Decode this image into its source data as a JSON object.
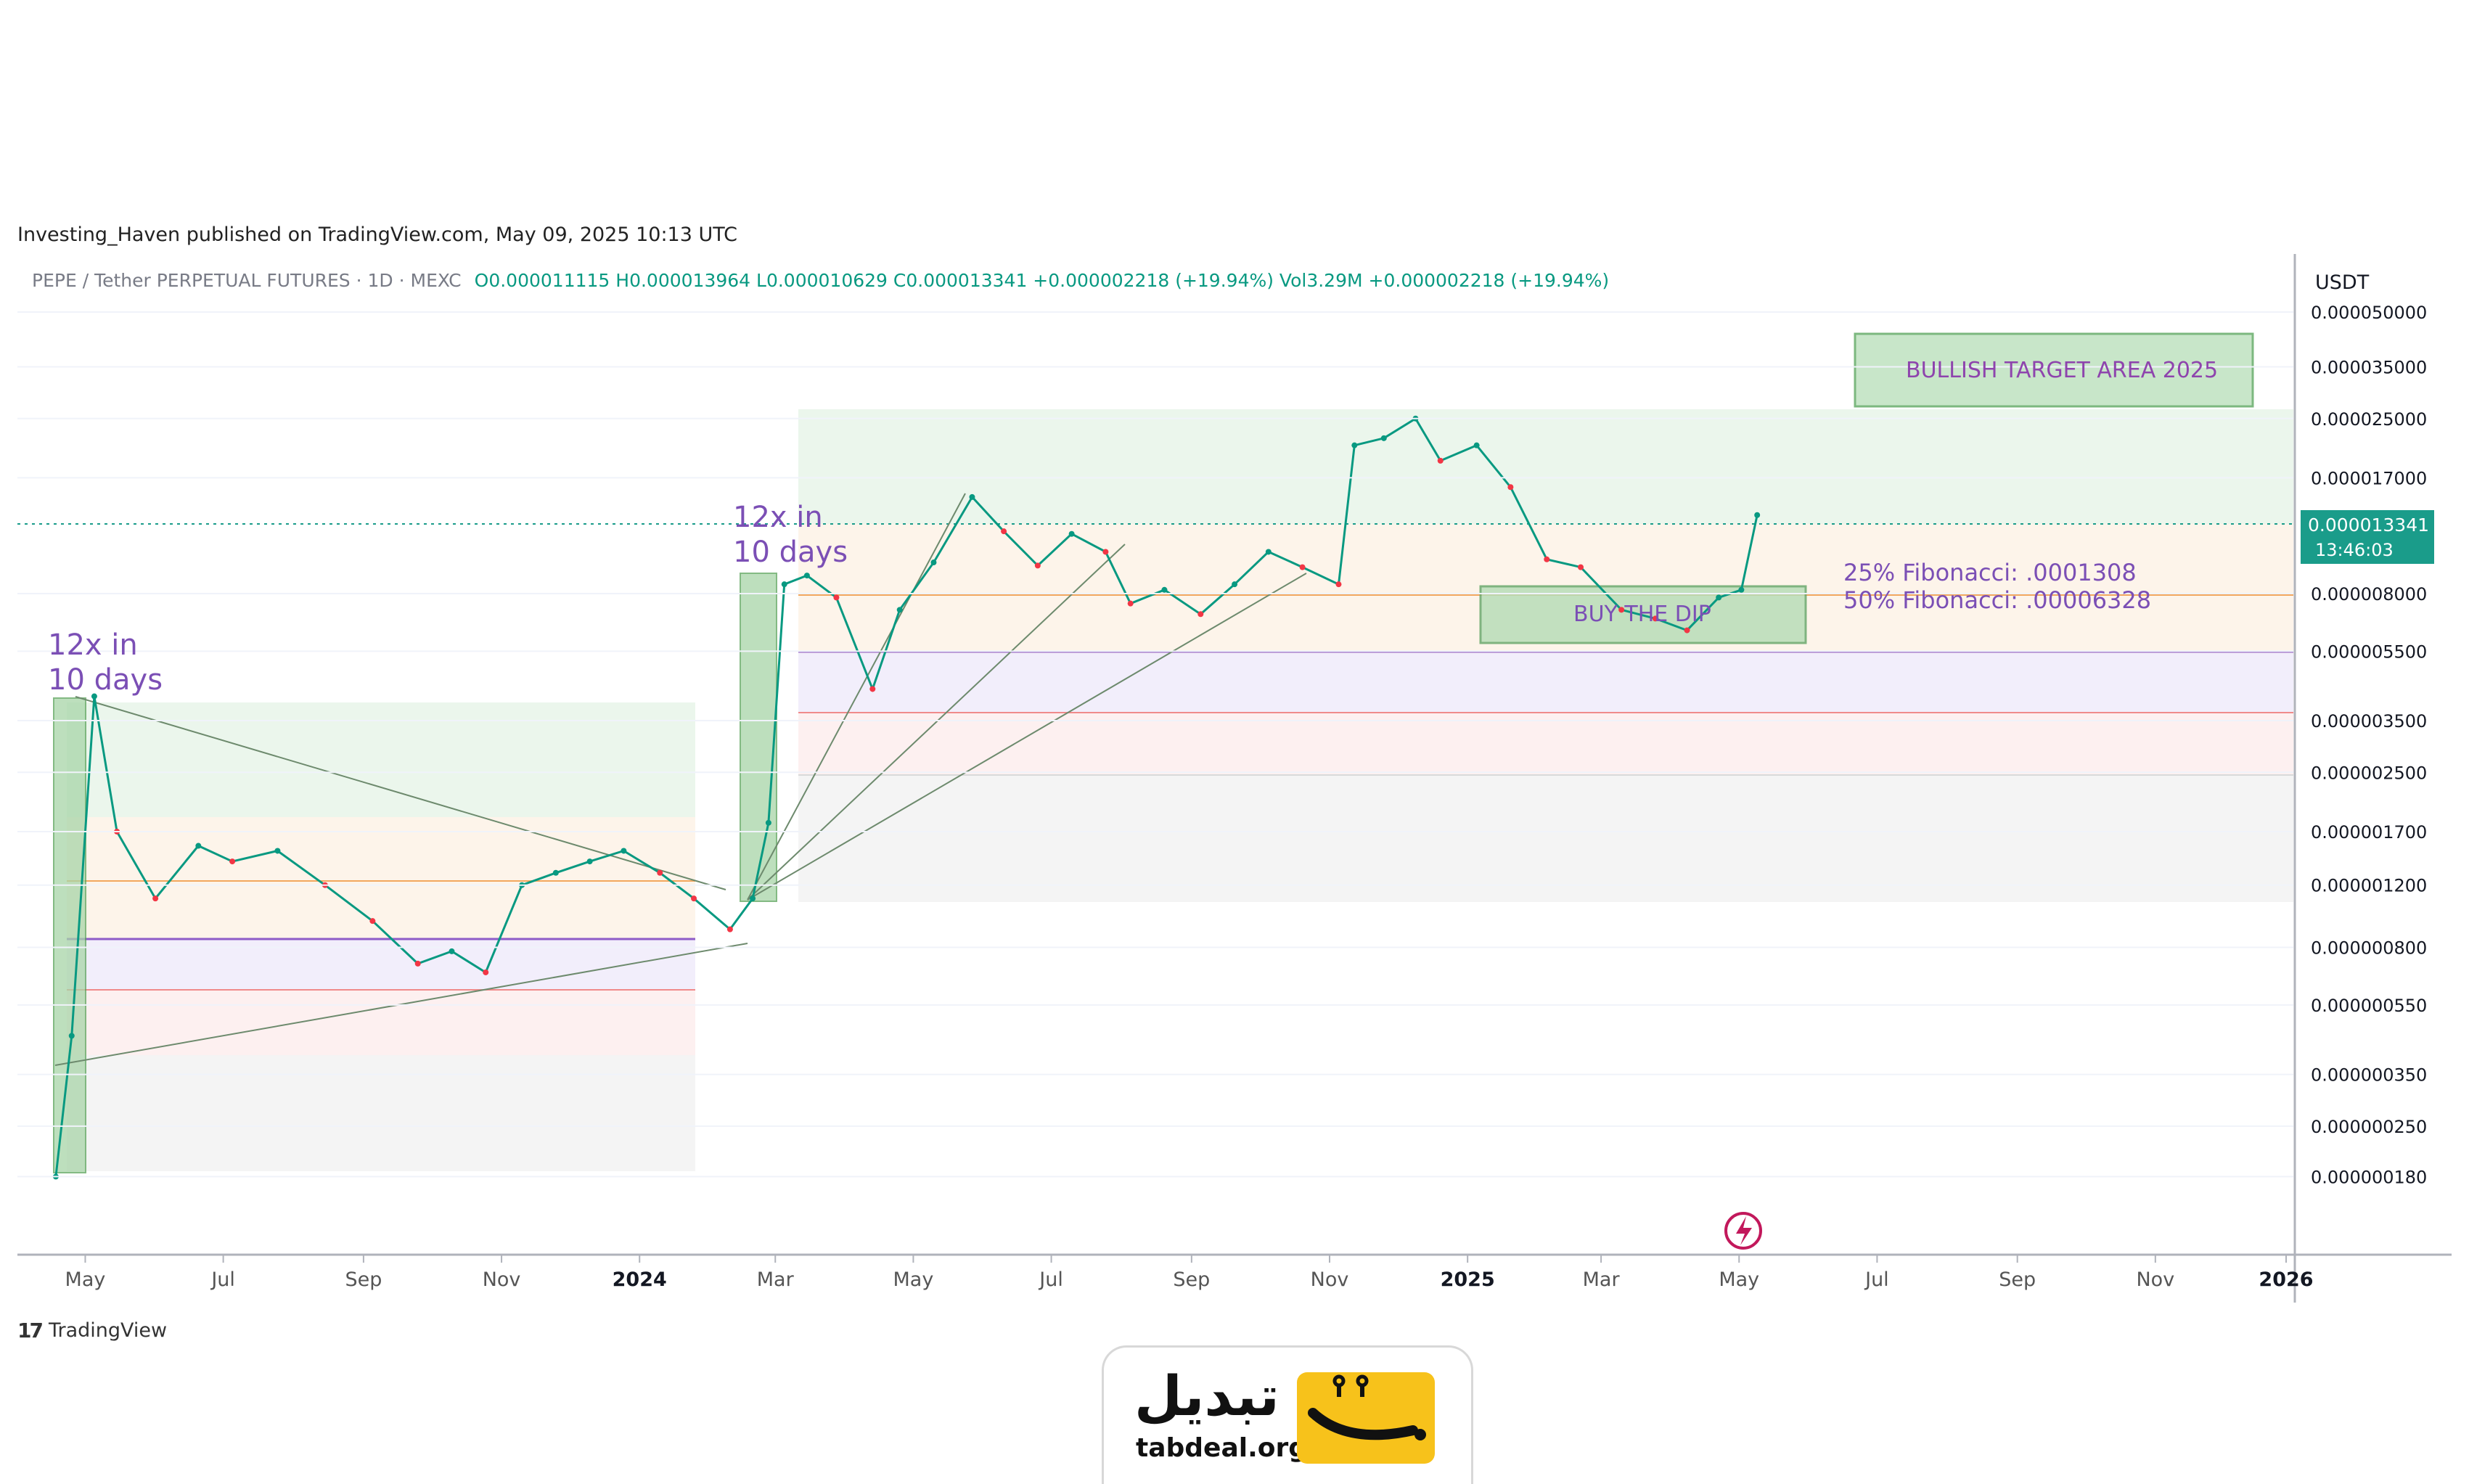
{
  "header": {
    "published": "Investing_Haven published on TradingView.com, May 09, 2025 10:13 UTC",
    "symbol": "PEPE / Tether PERPETUAL FUTURES · 1D · MEXC",
    "ohlc": "O0.000011115  H0.000013964  L0.000010629  C0.000013341  +0.000002218 (+19.94%)  Vol3.29M  +0.000002218 (+19.94%)"
  },
  "price_axis": {
    "unit": "USDT",
    "current_price": "0.000013341",
    "countdown": "13:46:03"
  },
  "annotations": {
    "jump1_line1": "12x in",
    "jump1_line2": "10 days",
    "jump2_line1": "12x in",
    "jump2_line2": "10 days",
    "target_box": "BULLISH TARGET AREA 2025",
    "buy_box": "BUY THE DIP",
    "fib25": "25% Fibonacci:  .0001308",
    "fib50": "50% Fibonacci:  .00006328"
  },
  "footer": {
    "brand": "TradingView"
  },
  "watermark": {
    "name_fa": "تبدیل",
    "domain": "tabdeal.org"
  },
  "colors": {
    "up": "#089981",
    "down": "#f23645",
    "annotation": "#7b4fb5",
    "price_badge": "#1a9c8a"
  },
  "chart_data": {
    "type": "line",
    "scale": "log",
    "x": [
      "2023-04-18",
      "2023-04-25",
      "2023-05-05",
      "2023-05-15",
      "2023-06-01",
      "2023-06-20",
      "2023-07-05",
      "2023-07-25",
      "2023-08-15",
      "2023-09-05",
      "2023-09-25",
      "2023-10-10",
      "2023-10-25",
      "2023-11-10",
      "2023-11-25",
      "2023-12-10",
      "2023-12-25",
      "2024-01-10",
      "2024-01-25",
      "2024-02-10",
      "2024-02-20",
      "2024-02-27",
      "2024-03-05",
      "2024-03-15",
      "2024-03-28",
      "2024-04-13",
      "2024-04-25",
      "2024-05-10",
      "2024-05-27",
      "2024-06-10",
      "2024-06-25",
      "2024-07-10",
      "2024-07-25",
      "2024-08-05",
      "2024-08-20",
      "2024-09-05",
      "2024-09-20",
      "2024-10-05",
      "2024-10-20",
      "2024-11-05",
      "2024-11-12",
      "2024-11-25",
      "2024-12-09",
      "2024-12-20",
      "2025-01-05",
      "2025-01-20",
      "2025-02-05",
      "2025-02-20",
      "2025-03-10",
      "2025-03-25",
      "2025-04-08",
      "2025-04-22",
      "2025-05-02",
      "2025-05-09"
    ],
    "series": [
      {
        "values": [
          1.8e-07,
          4.5e-07,
          4.1e-06,
          1.7e-06,
          1.1e-06,
          1.55e-06,
          1.4e-06,
          1.5e-06,
          1.2e-06,
          9.5e-07,
          7.2e-07,
          7.8e-07,
          6.8e-07,
          1.2e-06,
          1.3e-06,
          1.4e-06,
          1.5e-06,
          1.3e-06,
          1.1e-06,
          9e-07,
          1.1e-06,
          1.8e-06,
          8.5e-06,
          9e-06,
          7.8e-06,
          4.3e-06,
          7.2e-06,
          9.8e-06,
          1.5e-05,
          1.2e-05,
          9.6e-06,
          1.18e-05,
          1.05e-05,
          7.5e-06,
          8.2e-06,
          7e-06,
          8.5e-06,
          1.05e-05,
          9.5e-06,
          8.5e-06,
          2.1e-05,
          2.2e-05,
          2.5e-05,
          1.9e-05,
          2.1e-05,
          1.6e-05,
          1e-05,
          9.5e-06,
          7.2e-06,
          6.8e-06,
          6.3e-06,
          7.8e-06,
          8.2e-06,
          1.3341e-05
        ]
      }
    ],
    "x_ticks": [
      "May",
      "Jul",
      "Sep",
      "Nov",
      "2024",
      "Mar",
      "May",
      "Jul",
      "Sep",
      "Nov",
      "2025",
      "Mar",
      "May",
      "Jul",
      "Sep",
      "Nov",
      "2026"
    ],
    "y_ticks": [
      "0.000050000",
      "0.000035000",
      "0.000025000",
      "0.000017000",
      "0.000008000",
      "0.000005500",
      "0.000003500",
      "0.000002500",
      "0.000001700",
      "0.000001200",
      "0.000000800",
      "0.000000550",
      "0.000000350",
      "0.000000250",
      "0.000000180"
    ],
    "ylim": [
      1.5e-07,
      5e-05
    ]
  }
}
